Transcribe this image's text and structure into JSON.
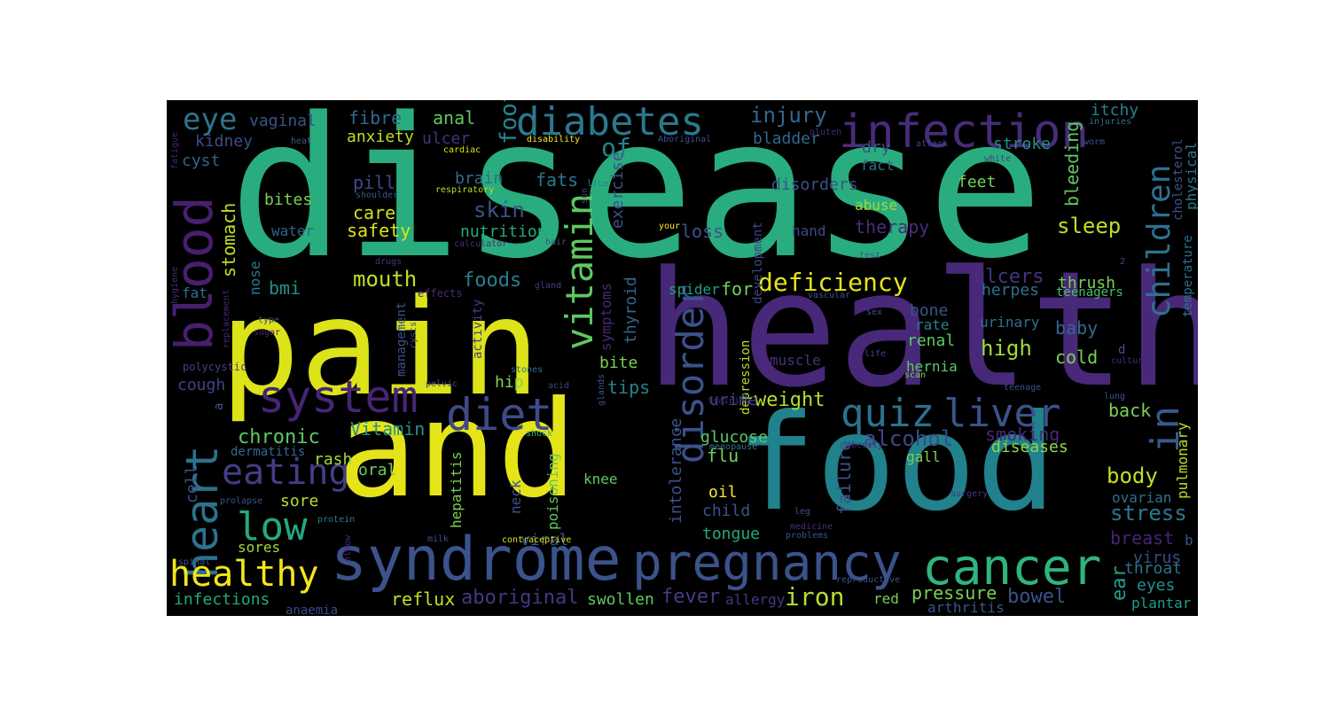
{
  "words": [
    {
      "text": "disease",
      "color": "#2aad7e"
    },
    {
      "text": "health",
      "color": "#482878"
    },
    {
      "text": "pain",
      "color": "#dce318"
    },
    {
      "text": "food",
      "color": "#21818c"
    },
    {
      "text": "and",
      "color": "#e5e419"
    },
    {
      "text": "syndrome",
      "color": "#3b528b"
    },
    {
      "text": "pregnancy",
      "color": "#3b528b"
    },
    {
      "text": "cancer",
      "color": "#2fb47c"
    },
    {
      "text": "infection",
      "color": "#472c7a"
    },
    {
      "text": "diabetes",
      "color": "#2a788e"
    },
    {
      "text": "system",
      "color": "#482475"
    },
    {
      "text": "diet",
      "color": "#3e4a89"
    },
    {
      "text": "quiz",
      "color": "#2c718e"
    },
    {
      "text": "liver",
      "color": "#3a538b"
    },
    {
      "text": "blood",
      "color": "#481f70"
    },
    {
      "text": "heart",
      "color": "#2c728e"
    },
    {
      "text": "low",
      "color": "#23a983"
    },
    {
      "text": "healthy",
      "color": "#f1e51d"
    },
    {
      "text": "eating",
      "color": "#433e85"
    },
    {
      "text": "eye",
      "color": "#2b758e"
    },
    {
      "text": "vitamin",
      "color": "#5ec962"
    },
    {
      "text": "disorder",
      "color": "#3b528b"
    },
    {
      "text": "children",
      "color": "#2d718e"
    },
    {
      "text": "in",
      "color": "#38598c"
    },
    {
      "text": "foot",
      "color": "#25848e"
    },
    {
      "text": "of",
      "color": "#25838e"
    },
    {
      "text": "injury",
      "color": "#31688e"
    },
    {
      "text": "fibre",
      "color": "#31688e"
    },
    {
      "text": "anal",
      "color": "#5dc863"
    },
    {
      "text": "vaginal",
      "color": "#3b528b"
    },
    {
      "text": "kidney",
      "color": "#3e4c8a"
    },
    {
      "text": "cyst",
      "color": "#33638d"
    },
    {
      "text": "anxiety",
      "color": "#bddf26"
    },
    {
      "text": "ulcer",
      "color": "#46307e"
    },
    {
      "text": "brain",
      "color": "#2d708e"
    },
    {
      "text": "pill",
      "color": "#3f4889"
    },
    {
      "text": "fats",
      "color": "#2a788e"
    },
    {
      "text": "skin",
      "color": "#3b528b"
    },
    {
      "text": "care",
      "color": "#d0e11c"
    },
    {
      "text": "safety",
      "color": "#dde318"
    },
    {
      "text": "nutrition",
      "color": "#22a884"
    },
    {
      "text": "bites",
      "color": "#7ad151"
    },
    {
      "text": "water",
      "color": "#33638d"
    },
    {
      "text": "stomach",
      "color": "#bddf26"
    },
    {
      "text": "mouth",
      "color": "#c2df23"
    },
    {
      "text": "foods",
      "color": "#27808e"
    },
    {
      "text": "bmi",
      "color": "#21918c"
    },
    {
      "text": "nose",
      "color": "#2a788e"
    },
    {
      "text": "fat",
      "color": "#2c728e"
    },
    {
      "text": "chronic",
      "color": "#5ec962"
    },
    {
      "text": "cough",
      "color": "#414487"
    },
    {
      "text": "bladder",
      "color": "#31688e"
    },
    {
      "text": "disorders",
      "color": "#3b528b"
    },
    {
      "text": "dry",
      "color": "#3b528b"
    },
    {
      "text": "fact",
      "color": "#2d708e"
    },
    {
      "text": "stroke",
      "color": "#21918c"
    },
    {
      "text": "itchy",
      "color": "#27808e"
    },
    {
      "text": "feet",
      "color": "#73d056"
    },
    {
      "text": "abuse",
      "color": "#a0da39"
    },
    {
      "text": "therapy",
      "color": "#472d7b"
    },
    {
      "text": "sleep",
      "color": "#bddf26"
    },
    {
      "text": "loss",
      "color": "#3b528b"
    },
    {
      "text": "hand",
      "color": "#3e4a89"
    },
    {
      "text": "deficiency",
      "color": "#e5e419"
    },
    {
      "text": "exercise",
      "color": "#3b528b"
    },
    {
      "text": "symptoms",
      "color": "#482878"
    },
    {
      "text": "thyroid",
      "color": "#31688e"
    },
    {
      "text": "spider",
      "color": "#1f9e89"
    },
    {
      "text": "for",
      "color": "#73d056"
    },
    {
      "text": "tips",
      "color": "#26828e"
    },
    {
      "text": "bite",
      "color": "#7ad151"
    },
    {
      "text": "weight",
      "color": "#b5de2b"
    },
    {
      "text": "Vitamin",
      "color": "#21918c"
    },
    {
      "text": "muscle",
      "color": "#46327e"
    },
    {
      "text": "glucose",
      "color": "#5ec962"
    },
    {
      "text": "urine",
      "color": "#414487"
    },
    {
      "text": "flu",
      "color": "#73d056"
    },
    {
      "text": "oil",
      "color": "#fde725"
    },
    {
      "text": "child",
      "color": "#3b528b"
    },
    {
      "text": "tongue",
      "color": "#22a884"
    },
    {
      "text": "fever",
      "color": "#433e85"
    },
    {
      "text": "iron",
      "color": "#b5de2b"
    },
    {
      "text": "alcohol",
      "color": "#3e4989"
    },
    {
      "text": "smoking",
      "color": "#482878"
    },
    {
      "text": "diseases",
      "color": "#8fd744"
    },
    {
      "text": "ulcers",
      "color": "#46327e"
    },
    {
      "text": "herpes",
      "color": "#2c728e"
    },
    {
      "text": "thrush",
      "color": "#7ad151"
    },
    {
      "text": "teenagers",
      "color": "#4ac16d"
    },
    {
      "text": "bone",
      "color": "#3b528b"
    },
    {
      "text": "rate",
      "color": "#27808e"
    },
    {
      "text": "renal",
      "color": "#5ec962"
    },
    {
      "text": "urinary",
      "color": "#2d708e"
    },
    {
      "text": "baby",
      "color": "#31688e"
    },
    {
      "text": "high",
      "color": "#a0da39"
    },
    {
      "text": "hernia",
      "color": "#5dc863"
    },
    {
      "text": "cold",
      "color": "#7ad151"
    },
    {
      "text": "back",
      "color": "#7ad151"
    },
    {
      "text": "body",
      "color": "#c2df23"
    },
    {
      "text": "stress",
      "color": "#2a788e"
    },
    {
      "text": "breast",
      "color": "#482475"
    },
    {
      "text": "ovarian",
      "color": "#2c728e"
    },
    {
      "text": "virus",
      "color": "#3e4a89"
    },
    {
      "text": "throat",
      "color": "#2c728e"
    },
    {
      "text": "eyes",
      "color": "#21918c"
    },
    {
      "text": "plantar",
      "color": "#1f9e89"
    },
    {
      "text": "pressure",
      "color": "#7ad151"
    },
    {
      "text": "bowel",
      "color": "#3b528b"
    },
    {
      "text": "red",
      "color": "#7ad151"
    },
    {
      "text": "arthritis",
      "color": "#3b528b"
    },
    {
      "text": "gall",
      "color": "#7ad151"
    },
    {
      "text": "allergy",
      "color": "#453781"
    },
    {
      "text": "ear",
      "color": "#1f9e89"
    },
    {
      "text": "bleeding",
      "color": "#5ec962"
    },
    {
      "text": "cholesterol",
      "color": "#3b528b"
    },
    {
      "text": "temperature",
      "color": "#2c728e"
    },
    {
      "text": "physical",
      "color": "#2a788e"
    },
    {
      "text": "pulmonary",
      "color": "#b8de29"
    },
    {
      "text": "failure",
      "color": "#3b528b"
    },
    {
      "text": "intolerance",
      "color": "#3b528b"
    },
    {
      "text": "depression",
      "color": "#bddf26"
    },
    {
      "text": "development",
      "color": "#414487"
    },
    {
      "text": "reflux",
      "color": "#c2df23"
    },
    {
      "text": "aboriginal",
      "color": "#453781"
    },
    {
      "text": "swollen",
      "color": "#5ec962"
    },
    {
      "text": "infections",
      "color": "#22a884"
    },
    {
      "text": "anaemia",
      "color": "#3e4a89"
    },
    {
      "text": "sores",
      "color": "#a0da39"
    },
    {
      "text": "sore",
      "color": "#b5de2b"
    },
    {
      "text": "rash",
      "color": "#a0da39"
    },
    {
      "text": "dermatitis",
      "color": "#31688e"
    },
    {
      "text": "cell",
      "color": "#3b528b"
    },
    {
      "text": "oral",
      "color": "#6ece58"
    },
    {
      "text": "hip",
      "color": "#84d44b"
    },
    {
      "text": "knee",
      "color": "#5ec962"
    },
    {
      "text": "neck",
      "color": "#3b528b"
    },
    {
      "text": "hepatitis",
      "color": "#7ad151"
    },
    {
      "text": "poisoning",
      "color": "#5ec962"
    },
    {
      "text": "viral",
      "color": "#3b528b"
    },
    {
      "text": "management",
      "color": "#3b528b"
    },
    {
      "text": "activity",
      "color": "#433e85"
    },
    {
      "text": "effects",
      "color": "#472c7a"
    },
    {
      "text": "heat",
      "color": "#355f8d"
    },
    {
      "text": "cardiac",
      "color": "#dde318"
    },
    {
      "text": "disability",
      "color": "#fde725"
    },
    {
      "text": "respiratory",
      "color": "#bddf26"
    },
    {
      "text": "shoulder",
      "color": "#3b528b"
    },
    {
      "text": "calculator",
      "color": "#472d7b"
    },
    {
      "text": "drugs",
      "color": "#46327e"
    },
    {
      "text": "gland",
      "color": "#433e85"
    },
    {
      "text": "lice",
      "color": "#26828e"
    },
    {
      "text": "sun",
      "color": "#414487"
    },
    {
      "text": "hair",
      "color": "#3b528b"
    },
    {
      "text": "your",
      "color": "#fde725"
    },
    {
      "text": "Aboriginal",
      "color": "#3b528b"
    },
    {
      "text": "gluten",
      "color": "#482878"
    },
    {
      "text": "attack",
      "color": "#414487"
    },
    {
      "text": "white",
      "color": "#414487"
    },
    {
      "text": "worm",
      "color": "#3b528b"
    },
    {
      "text": "injuries",
      "color": "#2c728e"
    },
    {
      "text": "test",
      "color": "#3b528b"
    },
    {
      "text": "vascular",
      "color": "#3b528b"
    },
    {
      "text": "2",
      "color": "#3e4989"
    },
    {
      "text": "sex",
      "color": "#3b528b"
    },
    {
      "text": "life",
      "color": "#414487"
    },
    {
      "text": "d",
      "color": "#3b528b"
    },
    {
      "text": "culture",
      "color": "#482878"
    },
    {
      "text": "scan",
      "color": "#7ad151"
    },
    {
      "text": "teenage",
      "color": "#3b528b"
    },
    {
      "text": "lung",
      "color": "#3b528b"
    },
    {
      "text": "obesity",
      "color": "#482878"
    },
    {
      "text": "menopause",
      "color": "#2a788e"
    },
    {
      "text": "training",
      "color": "#472c7a"
    },
    {
      "text": "shock",
      "color": "#35b779"
    },
    {
      "text": "glands",
      "color": "#3b528b"
    },
    {
      "text": "acid",
      "color": "#414487"
    },
    {
      "text": "stones",
      "color": "#2c728e"
    },
    {
      "text": "pelvic",
      "color": "#3b528b"
    },
    {
      "text": "cysts",
      "color": "#3b528b"
    },
    {
      "text": "D",
      "color": "#3b528b"
    },
    {
      "text": "surgery",
      "color": "#453781"
    },
    {
      "text": "leg",
      "color": "#3b528b"
    },
    {
      "text": "medicine",
      "color": "#46307e"
    },
    {
      "text": "problems",
      "color": "#3b528b"
    },
    {
      "text": "reproductive",
      "color": "#3b528b"
    },
    {
      "text": "contraceptive",
      "color": "#dde318"
    },
    {
      "text": "milk",
      "color": "#3b528b"
    },
    {
      "text": "elbow",
      "color": "#482878"
    },
    {
      "text": "protein",
      "color": "#2a788e"
    },
    {
      "text": "spinal",
      "color": "#3b528b"
    },
    {
      "text": "prolapse",
      "color": "#3b528b"
    },
    {
      "text": "polycystic",
      "color": "#414487"
    },
    {
      "text": "replacement",
      "color": "#482878"
    },
    {
      "text": "type",
      "color": "#3b528b"
    },
    {
      "text": "sugar",
      "color": "#482475"
    },
    {
      "text": "fatigue",
      "color": "#482475"
    },
    {
      "text": "hygiene",
      "color": "#472c7a"
    },
    {
      "text": "a",
      "color": "#3b528b"
    },
    {
      "text": "b",
      "color": "#3b528b"
    }
  ]
}
